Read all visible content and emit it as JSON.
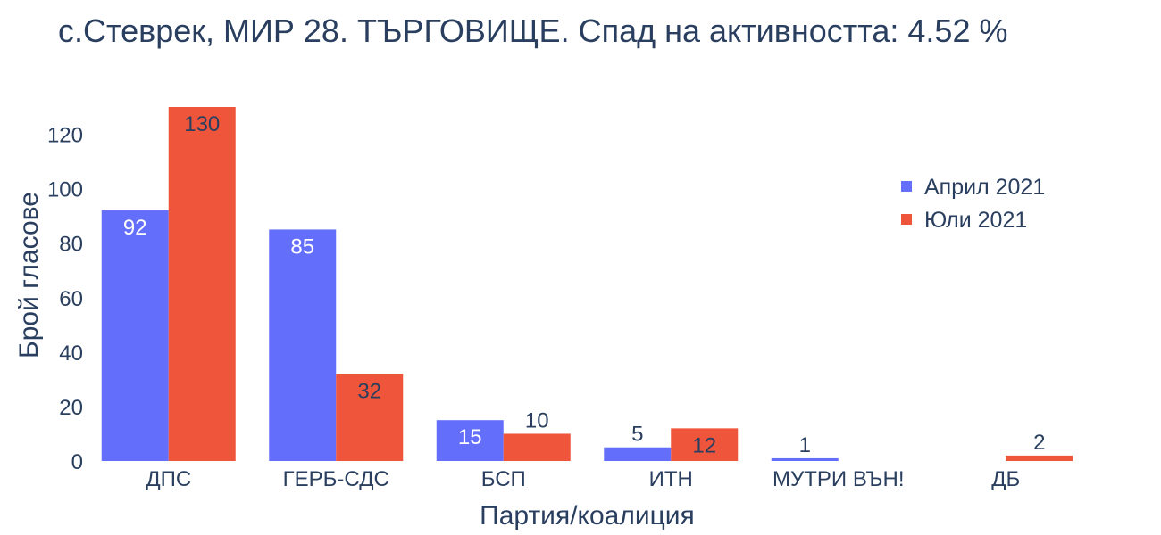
{
  "chart_data": {
    "type": "bar",
    "title": "с.Стеврек, МИР 28. ТЪРГОВИЩЕ. Спад на активността: 4.52  %",
    "xlabel": "Партия/коалиция",
    "ylabel": "Брой гласове",
    "categories": [
      "ДПС",
      "ГЕРБ-СДС",
      "БСП",
      "ИТН",
      "МУТРИ ВЪН!",
      "ДБ"
    ],
    "series": [
      {
        "name": "Април 2021",
        "color": "#636efa",
        "values": [
          92,
          85,
          15,
          5,
          1,
          0
        ],
        "labels": [
          "92",
          "85",
          "15",
          "5",
          "1",
          ""
        ]
      },
      {
        "name": "Юли 2021",
        "color": "#ef553b",
        "values": [
          130,
          32,
          10,
          12,
          0,
          2
        ],
        "labels": [
          "130",
          "32",
          "10",
          "12",
          "",
          "2"
        ]
      }
    ],
    "ylim": [
      0,
      130
    ],
    "yticks": [
      0,
      20,
      40,
      60,
      80,
      100,
      120
    ],
    "grid": false,
    "legend_position": "top-right"
  }
}
